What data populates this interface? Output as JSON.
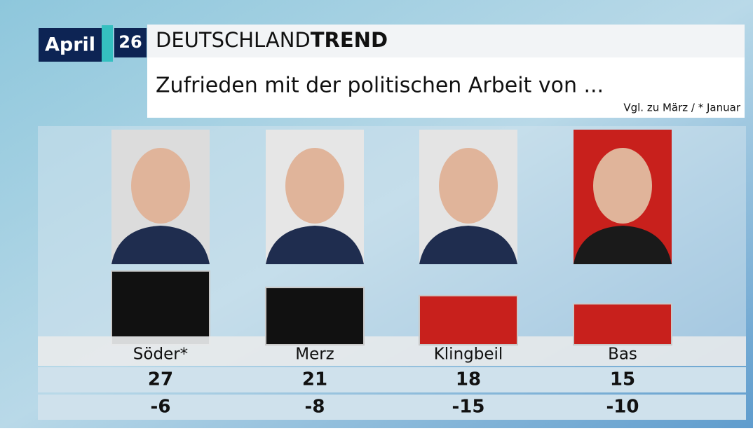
{
  "header": {
    "month": "April",
    "number": "26",
    "brand_light": "DEUTSCHLAND",
    "brand_bold": "TREND"
  },
  "chart_data": {
    "type": "bar",
    "title": "Zufrieden mit der politischen Arbeit von ...",
    "subtitle": "Vgl. zu März / * Januar",
    "categories": [
      "Söder*",
      "Merz",
      "Klingbeil",
      "Bas"
    ],
    "values": [
      27,
      21,
      18,
      15
    ],
    "changes": [
      -6,
      -8,
      -15,
      -10
    ],
    "colors": [
      "#111111",
      "#111111",
      "#c8201c",
      "#c8201c"
    ]
  }
}
